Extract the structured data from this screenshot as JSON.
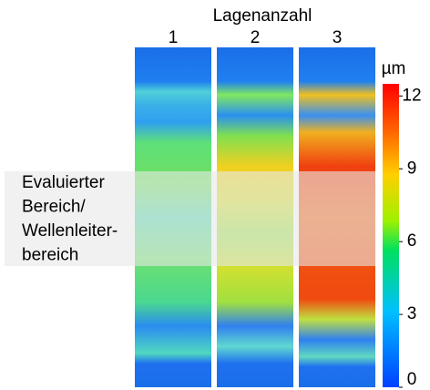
{
  "chart_data": {
    "type": "heatmap",
    "title": "Lagenanzahl",
    "categories": [
      "1",
      "2",
      "3"
    ],
    "colorbar": {
      "unit": "µm",
      "ylim": [
        0,
        12.5
      ],
      "yticks": [
        0,
        3,
        6,
        9,
        12
      ]
    },
    "annotation": [
      "Evaluierter",
      "Bereich/",
      "Wellenleiter-",
      "bereich"
    ]
  }
}
